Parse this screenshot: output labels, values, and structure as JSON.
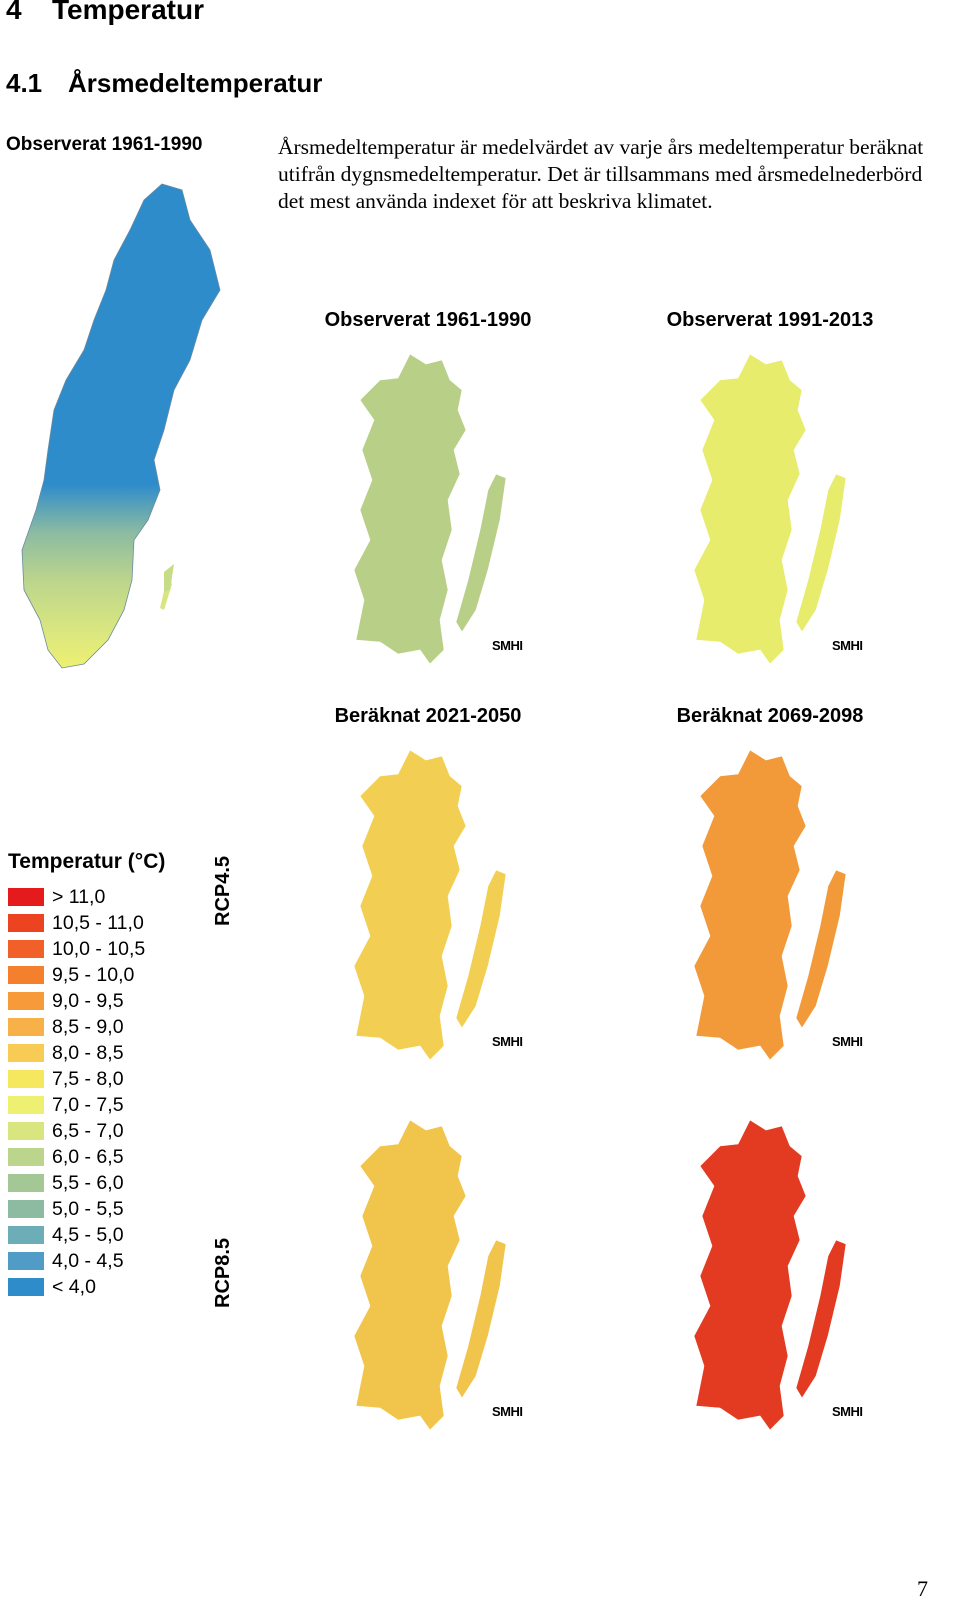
{
  "heading": {
    "number": "4",
    "title": "Temperatur"
  },
  "subheading": {
    "number": "4.1",
    "title": "Årsmedeltemperatur"
  },
  "side_label": "Observerat 1961-1990",
  "body_text": "Årsmedeltemperatur är medelvärdet av varje års medeltemperatur beräknat utifrån dygnsmedeltemperatur. Det är tillsammans med årsmedelnederbörd det mest använda indexet för att beskriva klimatet.",
  "maps": [
    {
      "title": "Observerat 1961-1990",
      "color": "#b8cf87",
      "logo": "SMHI"
    },
    {
      "title": "Observerat 1991-2013",
      "color": "#e8ec6c",
      "logo": "SMHI"
    },
    {
      "title": "Beräknat 2021-2050",
      "color": "#f2cf52",
      "logo": "SMHI"
    },
    {
      "title": "Beräknat 2069-2098",
      "color": "#f29a3a",
      "logo": "SMHI"
    },
    {
      "title": "",
      "color": "#f1c44c",
      "logo": "SMHI"
    },
    {
      "title": "",
      "color": "#e33a22",
      "logo": "SMHI"
    }
  ],
  "scenario_labels": {
    "rcp45": "RCP4.5",
    "rcp85": "RCP8.5"
  },
  "legend": {
    "title": "Temperatur (°C)",
    "items": [
      {
        "label": "> 11,0",
        "color": "#e41a1c"
      },
      {
        "label": "10,5 - 11,0",
        "color": "#ec4420"
      },
      {
        "label": "10,0 - 10,5",
        "color": "#f06028"
      },
      {
        "label": "9,5 - 10,0",
        "color": "#f4802e"
      },
      {
        "label": "9,0 - 9,5",
        "color": "#f69a3a"
      },
      {
        "label": "8,5 - 9,0",
        "color": "#f8b048"
      },
      {
        "label": "8,0 - 8,5",
        "color": "#f8cb55"
      },
      {
        "label": "7,5 - 8,0",
        "color": "#f6e85e"
      },
      {
        "label": "7,0 - 7,5",
        "color": "#eef071"
      },
      {
        "label": "6,5 - 7,0",
        "color": "#d9e680"
      },
      {
        "label": "6,0 - 6,5",
        "color": "#bcd58c"
      },
      {
        "label": "5,5 - 6,0",
        "color": "#a3c896"
      },
      {
        "label": "5,0 - 5,5",
        "color": "#8cbba2"
      },
      {
        "label": "4,5 - 5,0",
        "color": "#6cadb8"
      },
      {
        "label": "4,0 - 4,5",
        "color": "#509cc7"
      },
      {
        "label": "< 4,0",
        "color": "#2e8ccb"
      }
    ]
  },
  "page_number": "7"
}
